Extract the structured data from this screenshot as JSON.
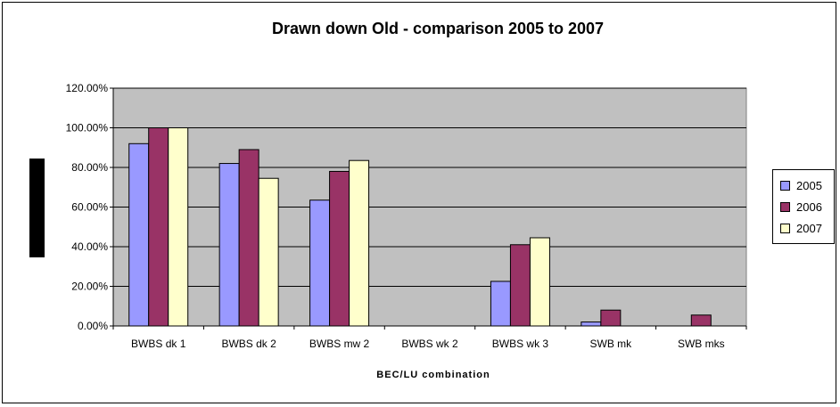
{
  "chart_data": {
    "type": "bar",
    "title": "Drawn down Old - comparison 2005 to 2007",
    "xlabel": "BEC/LU combination",
    "ylabel": "",
    "ylim": [
      0,
      120
    ],
    "yticks": [
      "0.00%",
      "20.00%",
      "40.00%",
      "60.00%",
      "80.00%",
      "100.00%",
      "120.00%"
    ],
    "categories": [
      "BWBS dk 1",
      "BWBS dk 2",
      "BWBS mw 2",
      "BWBS wk 2",
      "BWBS wk 3",
      "SWB mk",
      "SWB mks"
    ],
    "series": [
      {
        "name": "2005",
        "color": "#9999ff",
        "values": [
          92,
          82,
          63.5,
          0,
          22.5,
          2,
          0
        ]
      },
      {
        "name": "2006",
        "color": "#993366",
        "values": [
          100,
          89,
          78,
          0,
          41,
          8,
          5.5
        ]
      },
      {
        "name": "2007",
        "color": "#ffffcc",
        "values": [
          100,
          74.5,
          83.5,
          0,
          44.5,
          0,
          0
        ]
      }
    ],
    "grid": true,
    "legend": "right",
    "plot_background": "#c0c0c0"
  }
}
